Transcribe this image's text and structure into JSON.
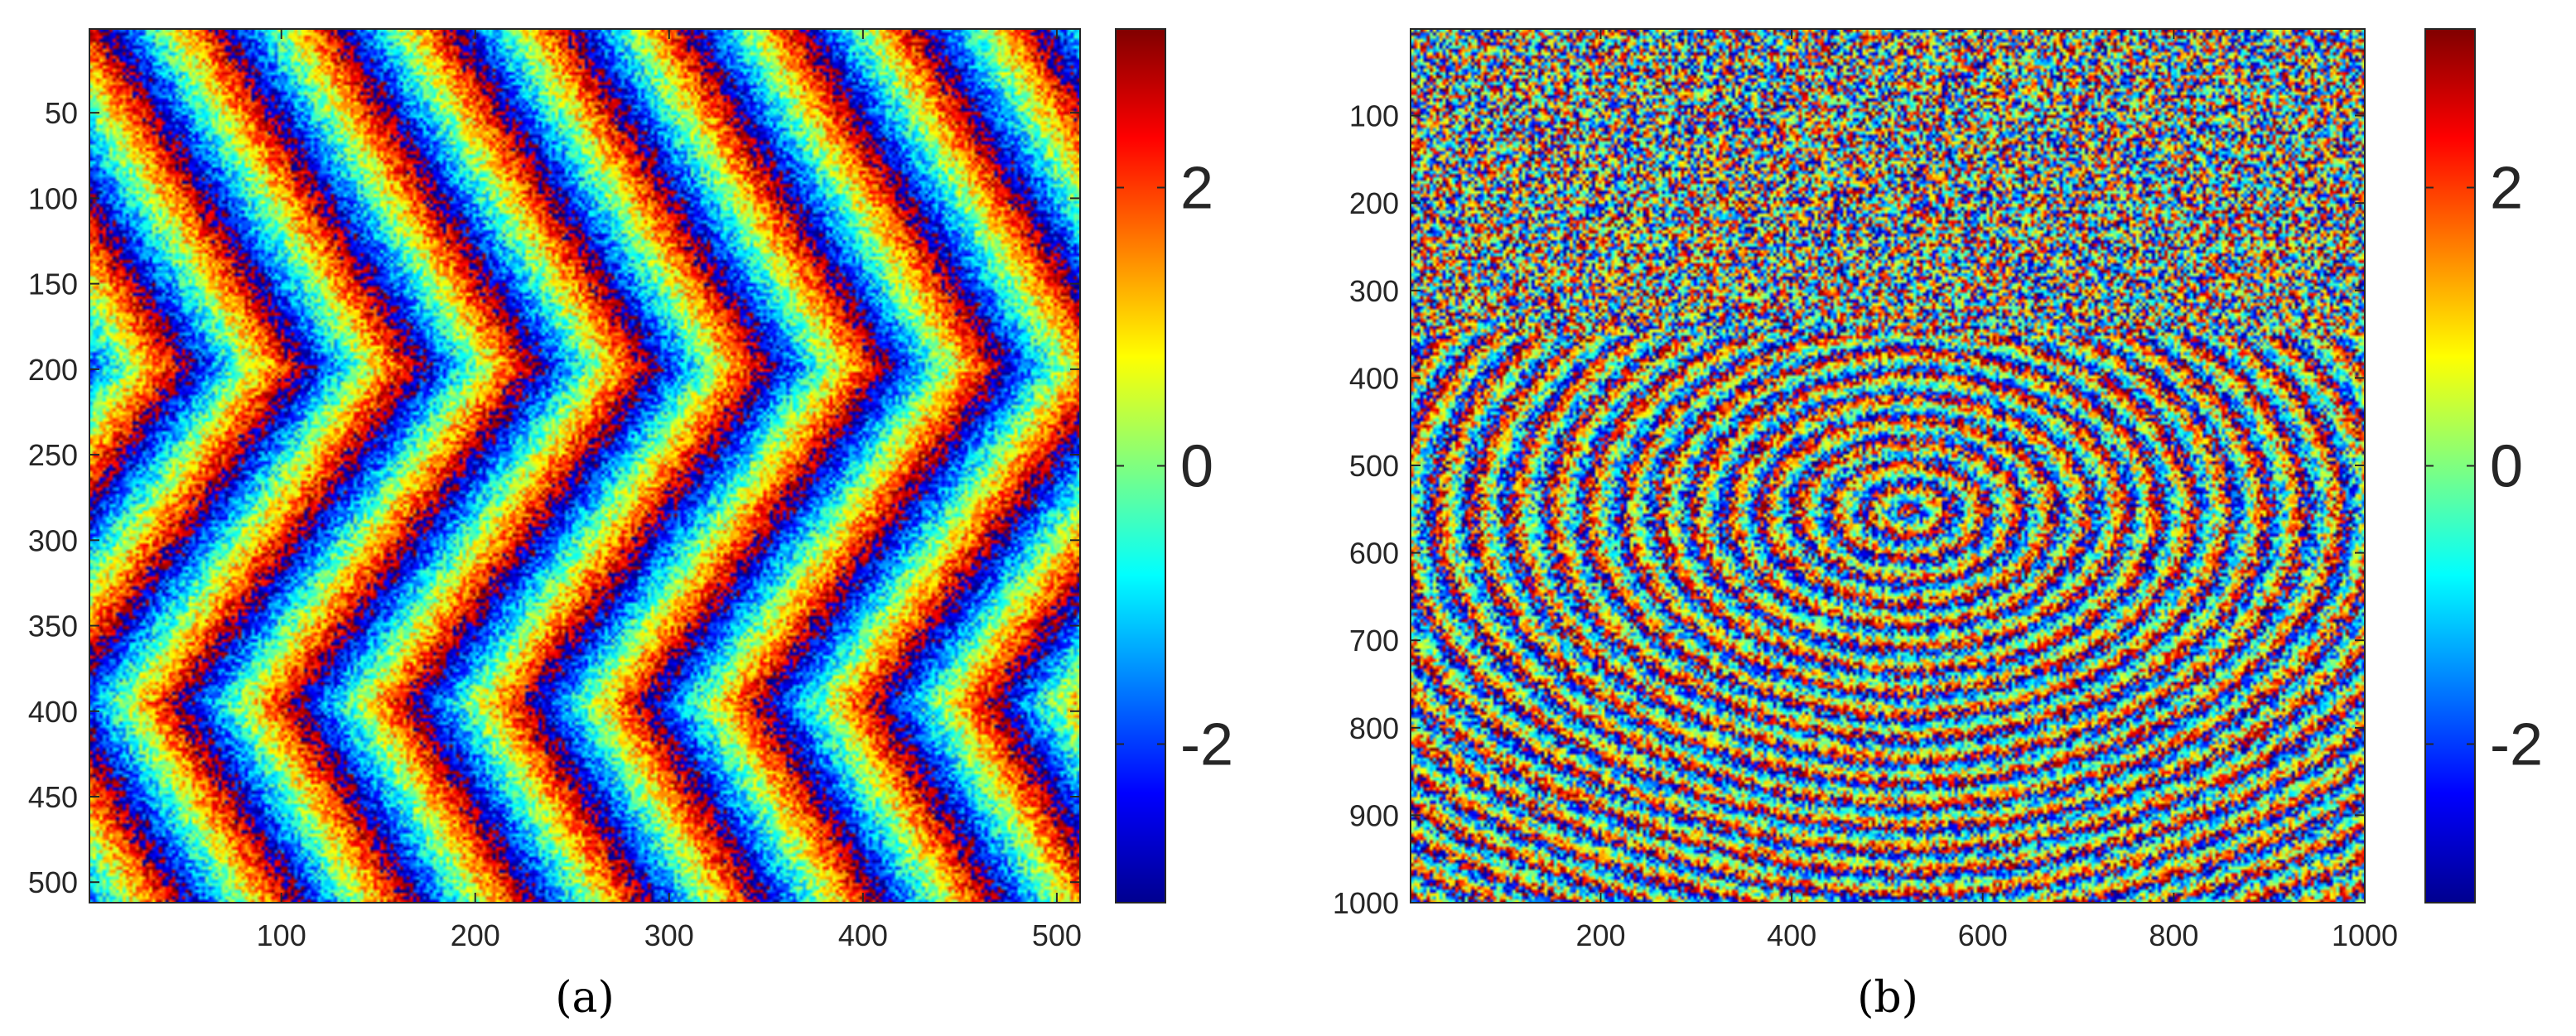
{
  "chart_data": [
    {
      "type": "heatmap",
      "caption": "(a)",
      "description_kind": "wrapped phase image",
      "xlim": [
        1,
        512
      ],
      "ylim": [
        1,
        512
      ],
      "y_reversed": true,
      "xticks": [
        100,
        200,
        300,
        400,
        500
      ],
      "yticks": [
        50,
        100,
        150,
        200,
        250,
        300,
        350,
        400,
        450,
        500
      ],
      "colorbar": {
        "colormap": "jet",
        "limits": [
          -3.14,
          3.14
        ],
        "ticks": [
          -2,
          0,
          2
        ]
      },
      "pattern": "zigzag",
      "xlabel": "",
      "ylabel": "",
      "title": ""
    },
    {
      "type": "heatmap",
      "caption": "(b)",
      "description_kind": "wrapped phase image",
      "xlim": [
        1,
        1000
      ],
      "ylim": [
        1,
        1000
      ],
      "y_reversed": true,
      "xticks": [
        200,
        400,
        600,
        800,
        1000
      ],
      "yticks": [
        100,
        200,
        300,
        400,
        500,
        600,
        700,
        800,
        900,
        1000
      ],
      "colorbar": {
        "colormap": "jet",
        "limits": [
          -3.14,
          3.14
        ],
        "ticks": [
          -2,
          0,
          2
        ]
      },
      "pattern": "concentric",
      "xlabel": "",
      "ylabel": "",
      "title": ""
    }
  ],
  "colors": {
    "axis": "#262626",
    "background": "#ffffff",
    "jet": [
      "#00008f",
      "#0000ff",
      "#00ffff",
      "#ffff00",
      "#ff0000",
      "#800000"
    ]
  }
}
